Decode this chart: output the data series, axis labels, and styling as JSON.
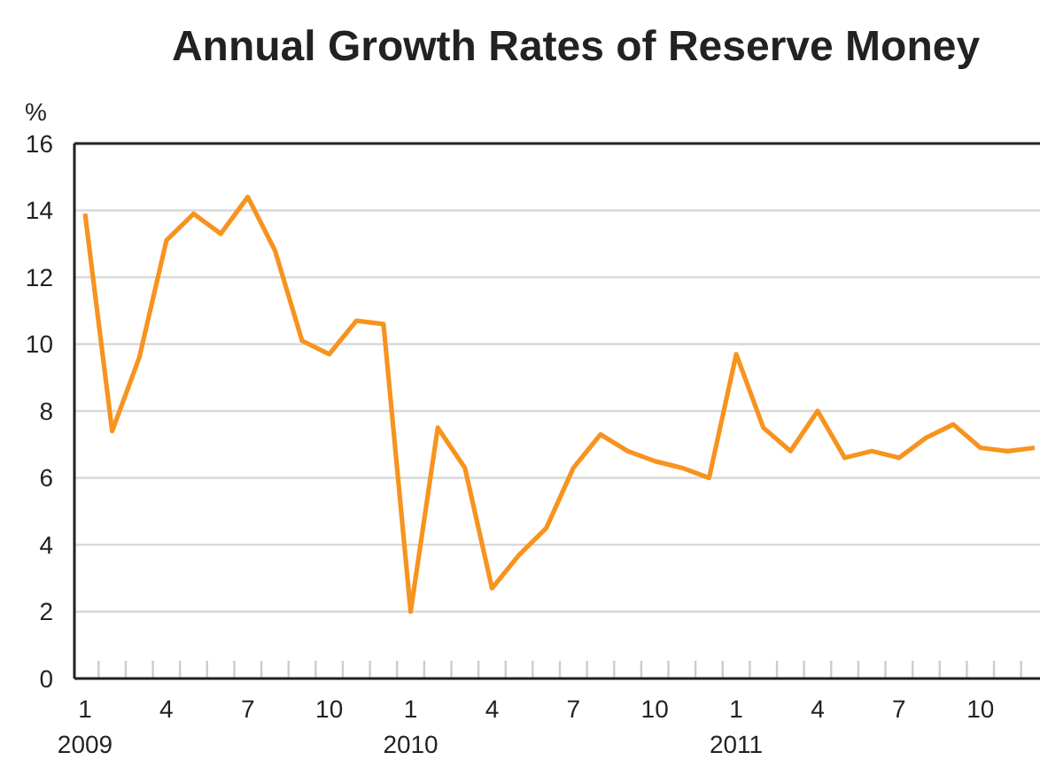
{
  "chart_data": {
    "type": "line",
    "title": "Annual Growth Rates of Reserve Money",
    "ylabel": "%",
    "categories": [
      "1\n2009",
      null,
      null,
      "4",
      null,
      null,
      "7",
      null,
      null,
      "10",
      null,
      null,
      "1\n2010",
      null,
      null,
      "4",
      null,
      null,
      "7",
      null,
      null,
      "10",
      null,
      null,
      "1\n2011",
      null,
      null,
      "4",
      null,
      null,
      "7",
      null,
      null,
      "10",
      null,
      null
    ],
    "series": [
      {
        "color": "#f7931e",
        "values": [
          13.9,
          7.4,
          9.6,
          13.1,
          13.9,
          13.3,
          14.4,
          12.8,
          10.1,
          9.7,
          10.7,
          10.6,
          2.0,
          7.5,
          6.3,
          2.7,
          3.7,
          4.5,
          6.3,
          7.3,
          6.8,
          6.5,
          6.3,
          6.0,
          9.7,
          7.5,
          6.8,
          8.0,
          6.6,
          6.8,
          6.6,
          7.2,
          7.6,
          6.9,
          6.8,
          6.9
        ]
      }
    ],
    "ylim": [
      0,
      16
    ],
    "yticks": [
      0,
      2,
      4,
      6,
      8,
      10,
      12,
      14,
      16
    ],
    "grid": "y",
    "marker": "none",
    "line_style": "solid"
  }
}
